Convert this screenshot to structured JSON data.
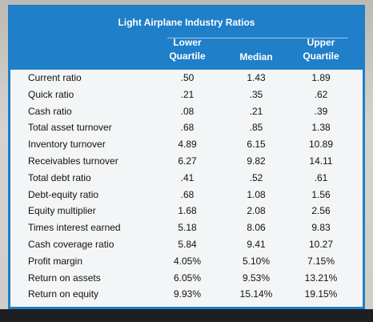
{
  "table": {
    "title": "Light Airplane Industry Ratios",
    "columns": {
      "lower": "Lower\nQuartile",
      "median": "Median",
      "upper": "Upper\nQuartile"
    },
    "rows": [
      {
        "label": "Current ratio",
        "lower": ".50",
        "median": "1.43",
        "upper": "1.89"
      },
      {
        "label": "Quick ratio",
        "lower": ".21",
        "median": ".35",
        "upper": ".62"
      },
      {
        "label": "Cash ratio",
        "lower": ".08",
        "median": ".21",
        "upper": ".39"
      },
      {
        "label": "Total asset turnover",
        "lower": ".68",
        "median": ".85",
        "upper": "1.38"
      },
      {
        "label": "Inventory turnover",
        "lower": "4.89",
        "median": "6.15",
        "upper": "10.89"
      },
      {
        "label": "Receivables turnover",
        "lower": "6.27",
        "median": "9.82",
        "upper": "14.11"
      },
      {
        "label": "Total debt ratio",
        "lower": ".41",
        "median": ".52",
        "upper": ".61"
      },
      {
        "label": "Debt-equity ratio",
        "lower": ".68",
        "median": "1.08",
        "upper": "1.56"
      },
      {
        "label": "Equity multiplier",
        "lower": "1.68",
        "median": "2.08",
        "upper": "2.56"
      },
      {
        "label": "Times interest earned",
        "lower": "5.18",
        "median": "8.06",
        "upper": "9.83"
      },
      {
        "label": "Cash coverage ratio",
        "lower": "5.84",
        "median": "9.41",
        "upper": "10.27"
      },
      {
        "label": "Profit margin",
        "lower": "4.05%",
        "median": "5.10%",
        "upper": "7.15%"
      },
      {
        "label": "Return on assets",
        "lower": "6.05%",
        "median": "9.53%",
        "upper": "13.21%"
      },
      {
        "label": "Return on equity",
        "lower": "9.93%",
        "median": "15.14%",
        "upper": "19.15%"
      }
    ]
  }
}
